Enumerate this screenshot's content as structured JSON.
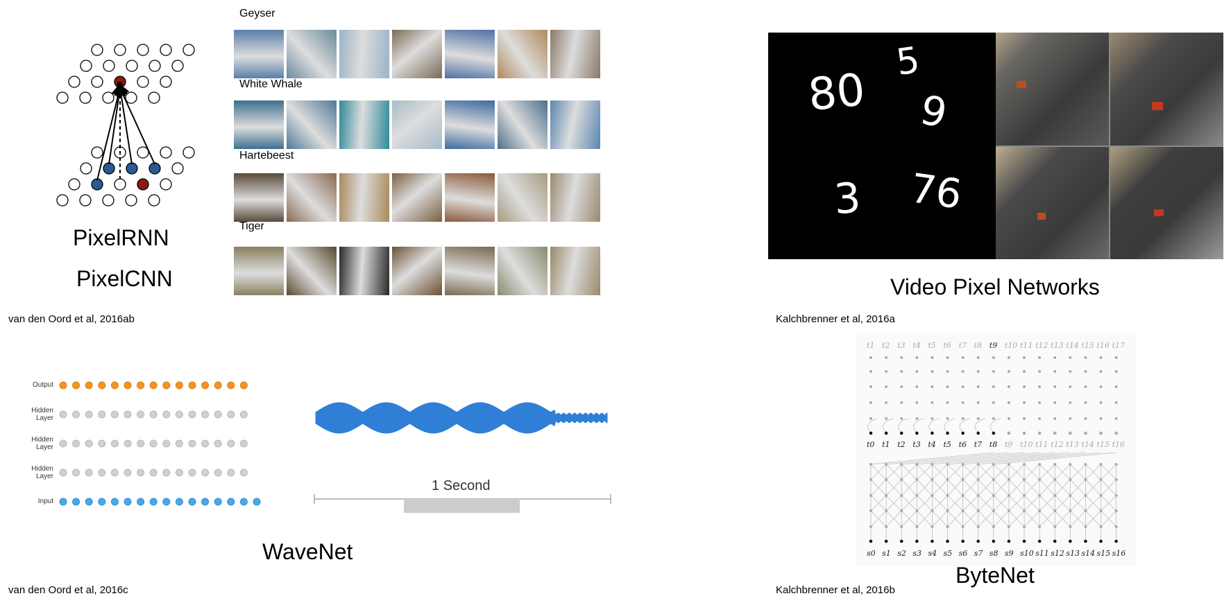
{
  "pixelrnn": {
    "title1": "PixelRNN",
    "title2": "PixelCNN",
    "citation": "van den Oord et al, 2016ab",
    "classes": [
      {
        "label": "Geyser",
        "colors": [
          "#5a7fa8",
          "#6b8a9c",
          "#9bb3c7",
          "#7a6a55",
          "#4f6fa3",
          "#b08a5a",
          "#8a7a6a"
        ]
      },
      {
        "label": "White Whale",
        "colors": [
          "#3e6f8f",
          "#4e7a95",
          "#2f8a9a",
          "#a7bcc6",
          "#3d6aa0",
          "#4d6f8a",
          "#5a86b0"
        ]
      },
      {
        "label": "Hartebeest",
        "colors": [
          "#5a4a3a",
          "#8a6a55",
          "#a88a5a",
          "#7a6040",
          "#8a5a3a",
          "#a89a80",
          "#9a8a70"
        ]
      },
      {
        "label": "Tiger",
        "colors": [
          "#8a8060",
          "#5a4a30",
          "#2a2a2a",
          "#6a5030",
          "#7a6a50",
          "#8a8a70",
          "#9a8a6a"
        ]
      }
    ]
  },
  "vpn": {
    "title": "Video Pixel Networks",
    "citation": "Kalchbrenner et al, 2016a",
    "digits": [
      "80",
      "5",
      "9",
      "3",
      "76"
    ]
  },
  "wavenet": {
    "title": "WaveNet",
    "citation": "van den Oord et al, 2016c",
    "layer_labels": {
      "output": "Output",
      "hidden": "Hidden Layer",
      "input": "Input"
    },
    "scale_label": "1 Second",
    "colors": {
      "output": "#f39325",
      "hidden": "#d0d0d0",
      "input": "#4aa8e8",
      "wave": "#2f7fd6"
    }
  },
  "bytenet": {
    "title": "ByteNet",
    "citation": "Kalchbrenner et al, 2016b",
    "target_labels": [
      "t1",
      "t2",
      "t3",
      "t4",
      "t5",
      "t6",
      "t7",
      "t8",
      "t9",
      "t10",
      "t11",
      "t12",
      "t13",
      "t14",
      "t15",
      "t16",
      "t17"
    ],
    "mid_labels": [
      "t0",
      "t1",
      "t2",
      "t3",
      "t4",
      "t5",
      "t6",
      "t7",
      "t8",
      "t9",
      "t10",
      "t11",
      "t12",
      "t13",
      "t14",
      "t15",
      "t16"
    ],
    "source_labels": [
      "s0",
      "s1",
      "s2",
      "s3",
      "s4",
      "s5",
      "s6",
      "s7",
      "s8",
      "s9",
      "s10",
      "s11",
      "s12",
      "s13",
      "s14",
      "s15",
      "s16"
    ]
  }
}
